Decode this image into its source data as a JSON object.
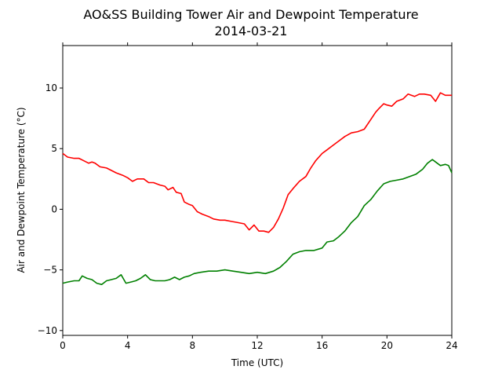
{
  "chart_data": {
    "type": "line",
    "title": "AO&SS Building Tower Air and Dewpoint Temperature",
    "subtitle": "2014-03-21",
    "xlabel": "Time (UTC)",
    "ylabel": "Air and Dewpoint Temperature (°C)",
    "xlim": [
      0,
      24
    ],
    "ylim": [
      -10.4,
      13.5
    ],
    "xticks": [
      "0",
      "4",
      "8",
      "12",
      "16",
      "20",
      "24"
    ],
    "yticks": [
      "−10",
      "−5",
      "0",
      "5",
      "10"
    ],
    "xtick_values": [
      0,
      4,
      8,
      12,
      16,
      20,
      24
    ],
    "ytick_values": [
      -10,
      -5,
      0,
      5,
      10
    ],
    "grid": false,
    "series": [
      {
        "color": "#ff0000",
        "x": [
          0,
          0.3,
          0.7,
          1.0,
          1.3,
          1.6,
          1.8,
          2.0,
          2.3,
          2.7,
          3.0,
          3.3,
          3.7,
          4.0,
          4.3,
          4.6,
          5.0,
          5.3,
          5.6,
          6.0,
          6.3,
          6.5,
          6.8,
          7.0,
          7.3,
          7.5,
          7.8,
          8.0,
          8.3,
          8.6,
          9.0,
          9.3,
          9.7,
          10.0,
          10.4,
          10.8,
          11.2,
          11.5,
          11.8,
          12.1,
          12.4,
          12.7,
          13.0,
          13.3,
          13.6,
          13.9,
          14.2,
          14.6,
          15.0,
          15.3,
          15.6,
          16.0,
          16.3,
          16.7,
          17.0,
          17.4,
          17.8,
          18.2,
          18.6,
          19.0,
          19.3,
          19.5,
          19.8,
          20.0,
          20.3,
          20.6,
          21.0,
          21.3,
          21.7,
          22.0,
          22.3,
          22.7,
          23.0,
          23.3,
          23.6,
          24.0
        ],
        "y": [
          4.6,
          4.3,
          4.2,
          4.2,
          4.0,
          3.8,
          3.9,
          3.8,
          3.5,
          3.4,
          3.2,
          3.0,
          2.8,
          2.6,
          2.3,
          2.5,
          2.5,
          2.2,
          2.2,
          2.0,
          1.9,
          1.6,
          1.8,
          1.4,
          1.3,
          0.6,
          0.4,
          0.3,
          -0.2,
          -0.4,
          -0.6,
          -0.8,
          -0.9,
          -0.9,
          -1.0,
          -1.1,
          -1.2,
          -1.7,
          -1.3,
          -1.8,
          -1.8,
          -1.9,
          -1.5,
          -0.8,
          0.1,
          1.2,
          1.7,
          2.3,
          2.7,
          3.4,
          4.0,
          4.6,
          4.9,
          5.3,
          5.6,
          6.0,
          6.3,
          6.4,
          6.6,
          7.4,
          8.0,
          8.3,
          8.7,
          8.6,
          8.5,
          8.9,
          9.1,
          9.5,
          9.3,
          9.5,
          9.5,
          9.4,
          8.9,
          9.6,
          9.4,
          9.4
        ]
      },
      {
        "color": "#008000",
        "x": [
          0,
          0.3,
          0.7,
          1.0,
          1.2,
          1.5,
          1.8,
          2.1,
          2.4,
          2.7,
          3.0,
          3.3,
          3.6,
          3.9,
          4.2,
          4.5,
          4.8,
          5.1,
          5.4,
          5.7,
          6.0,
          6.3,
          6.6,
          6.9,
          7.2,
          7.5,
          7.8,
          8.1,
          8.5,
          9.0,
          9.5,
          10.0,
          10.5,
          11.0,
          11.5,
          12.0,
          12.5,
          13.0,
          13.4,
          13.8,
          14.2,
          14.6,
          15.0,
          15.5,
          16.0,
          16.3,
          16.7,
          17.0,
          17.4,
          17.8,
          18.2,
          18.6,
          19.0,
          19.4,
          19.8,
          20.2,
          20.6,
          21.0,
          21.4,
          21.8,
          22.2,
          22.5,
          22.8,
          23.0,
          23.3,
          23.6,
          23.8,
          24.0
        ],
        "y": [
          -6.1,
          -6.0,
          -5.9,
          -5.9,
          -5.5,
          -5.7,
          -5.8,
          -6.1,
          -6.2,
          -5.9,
          -5.8,
          -5.7,
          -5.4,
          -6.1,
          -6.0,
          -5.9,
          -5.7,
          -5.4,
          -5.8,
          -5.9,
          -5.9,
          -5.9,
          -5.8,
          -5.6,
          -5.8,
          -5.6,
          -5.5,
          -5.3,
          -5.2,
          -5.1,
          -5.1,
          -5.0,
          -5.1,
          -5.2,
          -5.3,
          -5.2,
          -5.3,
          -5.1,
          -4.8,
          -4.3,
          -3.7,
          -3.5,
          -3.4,
          -3.4,
          -3.2,
          -2.7,
          -2.6,
          -2.3,
          -1.8,
          -1.1,
          -0.6,
          0.3,
          0.8,
          1.5,
          2.1,
          2.3,
          2.4,
          2.5,
          2.7,
          2.9,
          3.3,
          3.8,
          4.1,
          3.9,
          3.6,
          3.7,
          3.6,
          3.0
        ]
      }
    ]
  }
}
